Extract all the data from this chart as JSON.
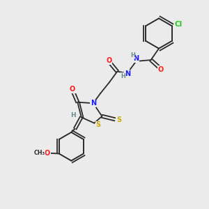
{
  "bg_color": "#ebebeb",
  "bond_color": "#2a2a2a",
  "atom_colors": {
    "O": "#ff1a1a",
    "N": "#1a1aff",
    "S": "#ccaa00",
    "Cl": "#22cc22",
    "H": "#6a8a8a",
    "C": "#2a2a2a"
  },
  "fs": 7.0,
  "fs_small": 6.0
}
